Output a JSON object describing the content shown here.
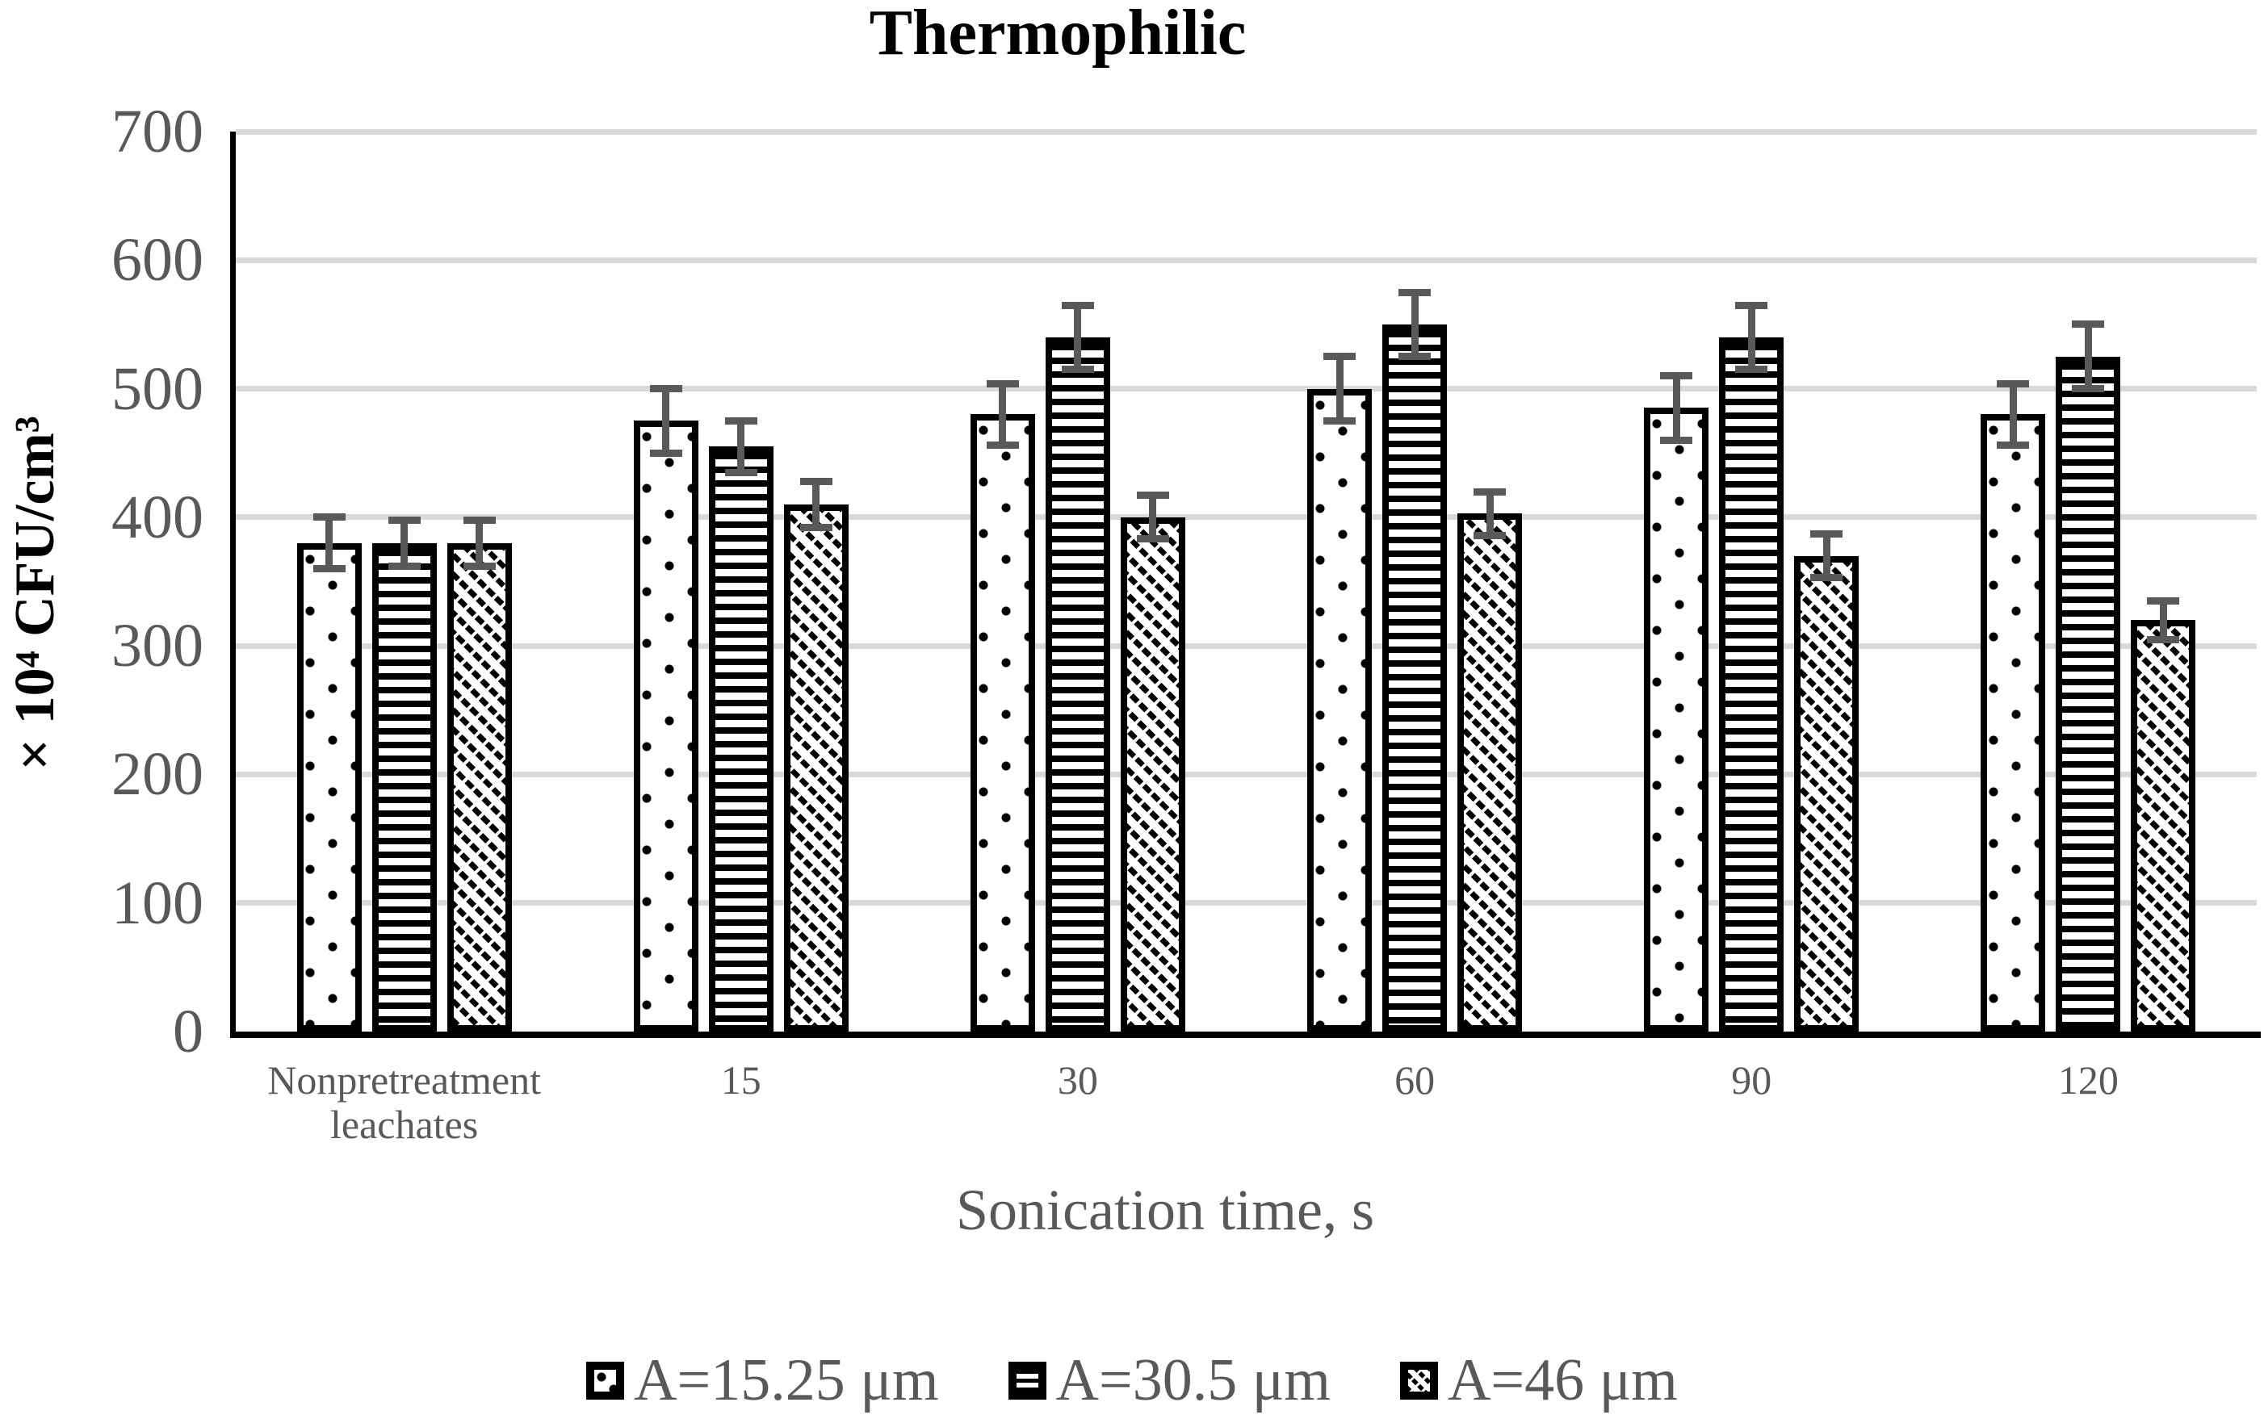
{
  "title": "Thermophilic",
  "y_axis": {
    "label": "× 10⁴ CFU/cm³",
    "ticks": [
      0,
      100,
      200,
      300,
      400,
      500,
      600,
      700
    ],
    "max": 700
  },
  "x_axis": {
    "title": "Sonication time, s",
    "categories": [
      "Nonpretreatment\nleachates",
      "15",
      "30",
      "60",
      "90",
      "120"
    ]
  },
  "legend": {
    "entries": [
      "A=15.25 μm",
      "A=30.5 μm",
      "A=46 μm"
    ]
  },
  "chart_data": {
    "type": "bar",
    "title": "Thermophilic",
    "xlabel": "Sonication time, s",
    "ylabel": "× 10⁴ CFU/cm³",
    "ylim": [
      0,
      700
    ],
    "gridlines": "horizontal every 100",
    "legend_position": "bottom",
    "categories": [
      "Nonpretreatment\nleachates",
      "15",
      "30",
      "60",
      "90",
      "120"
    ],
    "series": [
      {
        "name": "A=15.25 μm",
        "pattern": "dots",
        "values": [
          380,
          475,
          480,
          500,
          485,
          480
        ],
        "errors": [
          20,
          25,
          24,
          25,
          25,
          24
        ]
      },
      {
        "name": "A=30.5 μm",
        "pattern": "hlines",
        "values": [
          380,
          455,
          540,
          550,
          540,
          525
        ],
        "errors": [
          18,
          20,
          25,
          25,
          25,
          25
        ]
      },
      {
        "name": "A=46 μm",
        "pattern": "diag",
        "values": [
          380,
          410,
          400,
          403,
          370,
          320
        ],
        "errors": [
          18,
          18,
          17,
          17,
          17,
          15
        ]
      }
    ]
  },
  "colors": {
    "text_gray": "#595959",
    "gridline": "#d9d9d9",
    "bar_fill": "#ffffff",
    "bar_border": "#000000",
    "error_bar": "#595959",
    "background": "#ffffff"
  }
}
